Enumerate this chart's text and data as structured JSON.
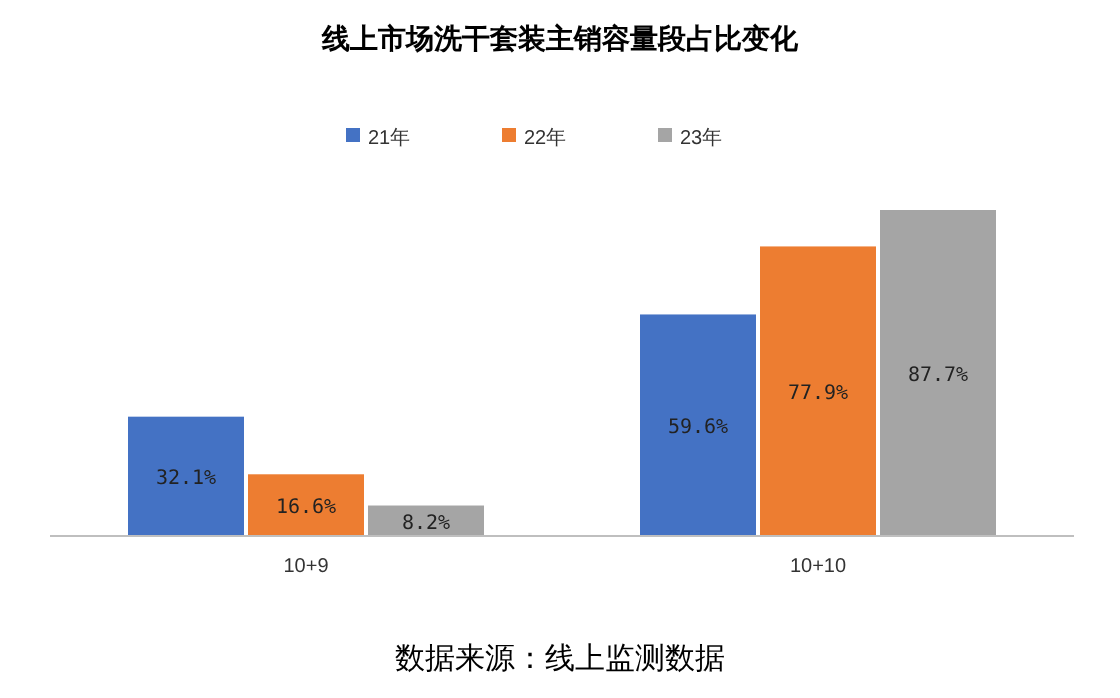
{
  "chart_data": {
    "type": "bar",
    "title": "线上市场洗干套装主销容量段占比变化",
    "categories": [
      "10+9",
      "10+10"
    ],
    "series": [
      {
        "name": "21年",
        "color": "#4472c4",
        "values": [
          32.1,
          59.6
        ],
        "value_labels": [
          "32.1%",
          "59.6%"
        ]
      },
      {
        "name": "22年",
        "color": "#ed7d31",
        "values": [
          16.6,
          77.9
        ],
        "value_labels": [
          "16.6%",
          "77.9%"
        ]
      },
      {
        "name": "23年",
        "color": "#a5a5a5",
        "values": [
          8.2,
          87.7
        ],
        "value_labels": [
          "8.2%",
          "87.7%"
        ]
      }
    ],
    "legend": "top",
    "annotations": [
      "数据来源：线上监测数据"
    ]
  }
}
